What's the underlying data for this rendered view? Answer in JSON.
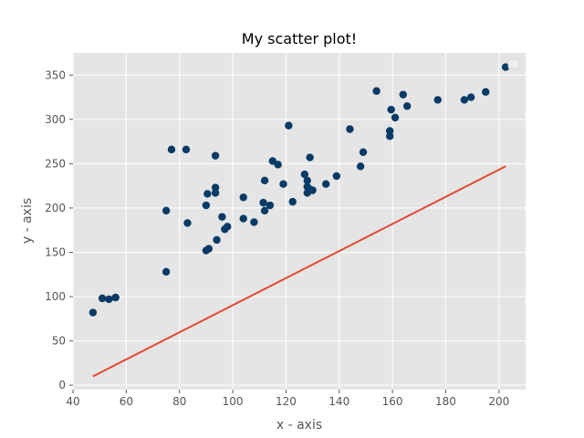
{
  "chart_data": {
    "type": "scatter",
    "title": "My scatter plot!",
    "xlabel": "x - axis",
    "ylabel": "y - axis",
    "xlim": [
      40,
      210
    ],
    "ylim": [
      -5,
      375
    ],
    "xticks": [
      40,
      60,
      80,
      100,
      120,
      140,
      160,
      180,
      200
    ],
    "yticks": [
      0,
      50,
      100,
      150,
      200,
      250,
      300,
      350
    ],
    "grid": true,
    "legend": "top-right (empty)",
    "colors": {
      "background": "#e5e5e5",
      "grid": "#ffffff",
      "points": "#073a66",
      "line": "#e24a33"
    },
    "points": [
      [
        47.5,
        82
      ],
      [
        51,
        98
      ],
      [
        53.5,
        97
      ],
      [
        56,
        99
      ],
      [
        75,
        128
      ],
      [
        75,
        197
      ],
      [
        77,
        266
      ],
      [
        82.5,
        266
      ],
      [
        83,
        183
      ],
      [
        90,
        203
      ],
      [
        90.5,
        216
      ],
      [
        90,
        152
      ],
      [
        91,
        154
      ],
      [
        93.5,
        259
      ],
      [
        93.5,
        223
      ],
      [
        93.5,
        217
      ],
      [
        94,
        164
      ],
      [
        96,
        190
      ],
      [
        97,
        176
      ],
      [
        98,
        179
      ],
      [
        104,
        212
      ],
      [
        104,
        188
      ],
      [
        108,
        184
      ],
      [
        111.5,
        206
      ],
      [
        112,
        231
      ],
      [
        112,
        197
      ],
      [
        114,
        203
      ],
      [
        115,
        253
      ],
      [
        117,
        249
      ],
      [
        119,
        227
      ],
      [
        121,
        293
      ],
      [
        122.5,
        207
      ],
      [
        127,
        238
      ],
      [
        128,
        231
      ],
      [
        128,
        224
      ],
      [
        128,
        217
      ],
      [
        129,
        257
      ],
      [
        129,
        221
      ],
      [
        130,
        220
      ],
      [
        135,
        227
      ],
      [
        139,
        236
      ],
      [
        144,
        289
      ],
      [
        148,
        247
      ],
      [
        149,
        263
      ],
      [
        154,
        332
      ],
      [
        159,
        287
      ],
      [
        159,
        281
      ],
      [
        159.5,
        311
      ],
      [
        161,
        302
      ],
      [
        164,
        328
      ],
      [
        165.5,
        315
      ],
      [
        177,
        322
      ],
      [
        187,
        322
      ],
      [
        189.5,
        325
      ],
      [
        195,
        331
      ],
      [
        202.5,
        359
      ]
    ],
    "line": {
      "x": [
        47.5,
        202.5
      ],
      "y": [
        10,
        247
      ]
    }
  }
}
